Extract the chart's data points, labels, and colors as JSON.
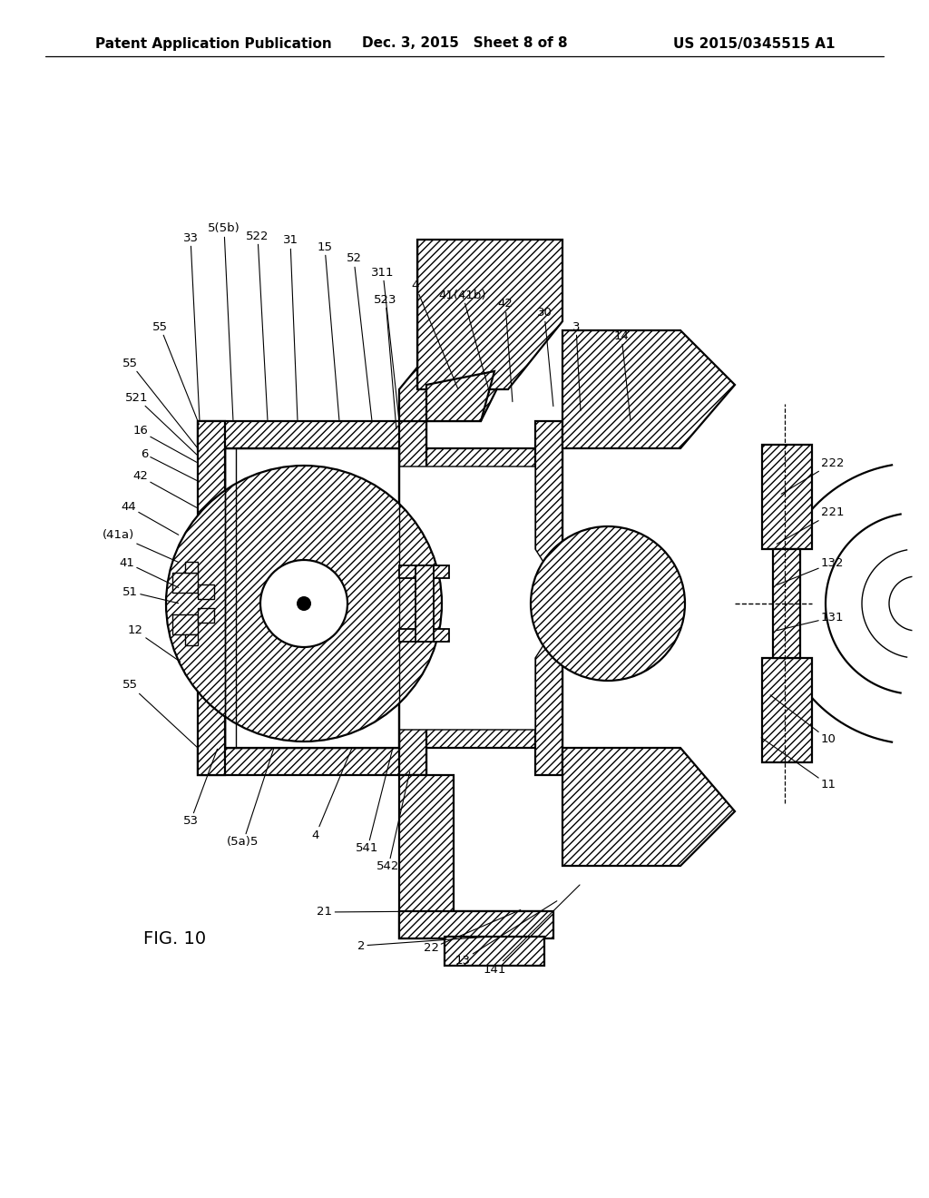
{
  "bg_color": "#ffffff",
  "header_left": "Patent Application Publication",
  "header_center": "Dec. 3, 2015   Sheet 8 of 8",
  "header_right": "US 2015/0345515 A1",
  "figure_label": "FIG. 10",
  "header_fontsize": 11,
  "fig_label_fontsize": 14,
  "label_fontsize": 9.5
}
